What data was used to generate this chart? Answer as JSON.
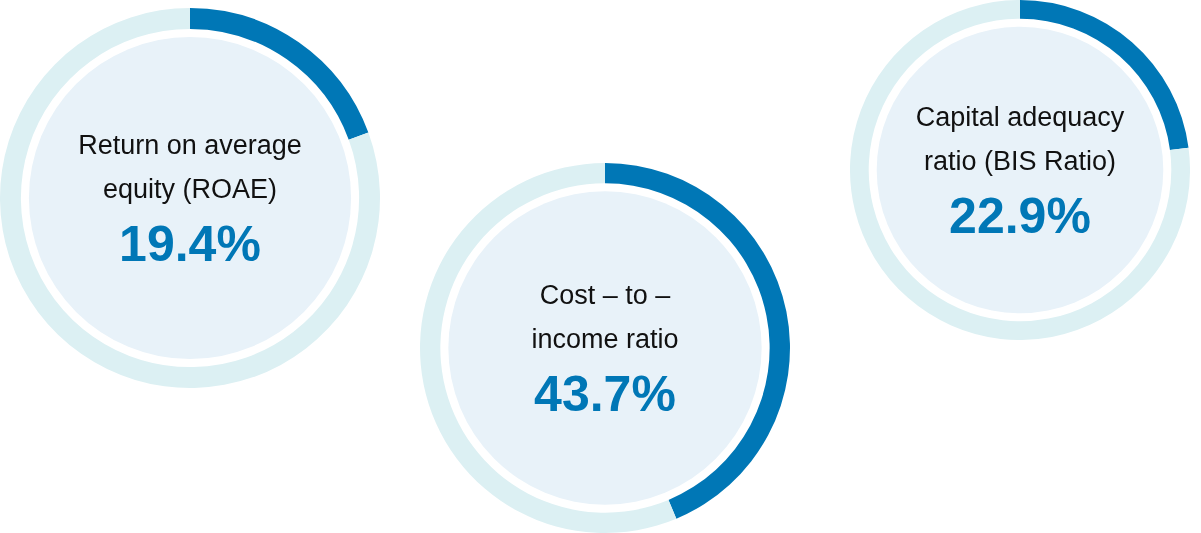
{
  "chart_data": [
    {
      "type": "donut",
      "title": "Return on average equity (ROAE)",
      "categories": [
        null,
        null
      ],
      "values": [
        19.4,
        80.6
      ],
      "colors": [
        "#0077b6",
        "#dcf0f3"
      ],
      "annotations": [
        "19.4%"
      ]
    },
    {
      "type": "donut",
      "title": "Cost – to – income ratio",
      "categories": [
        null,
        null
      ],
      "values": [
        43.7,
        56.3
      ],
      "colors": [
        "#0077b6",
        "#dcf0f3"
      ],
      "annotations": [
        "43.7%"
      ]
    },
    {
      "type": "donut",
      "title": "Capital adequacy ratio (BIS Ratio)",
      "categories": [
        null,
        null
      ],
      "values": [
        22.9,
        77.1
      ],
      "colors": [
        "#0077b6",
        "#dcf0f3"
      ],
      "annotations": [
        "22.9%"
      ]
    }
  ]
}
